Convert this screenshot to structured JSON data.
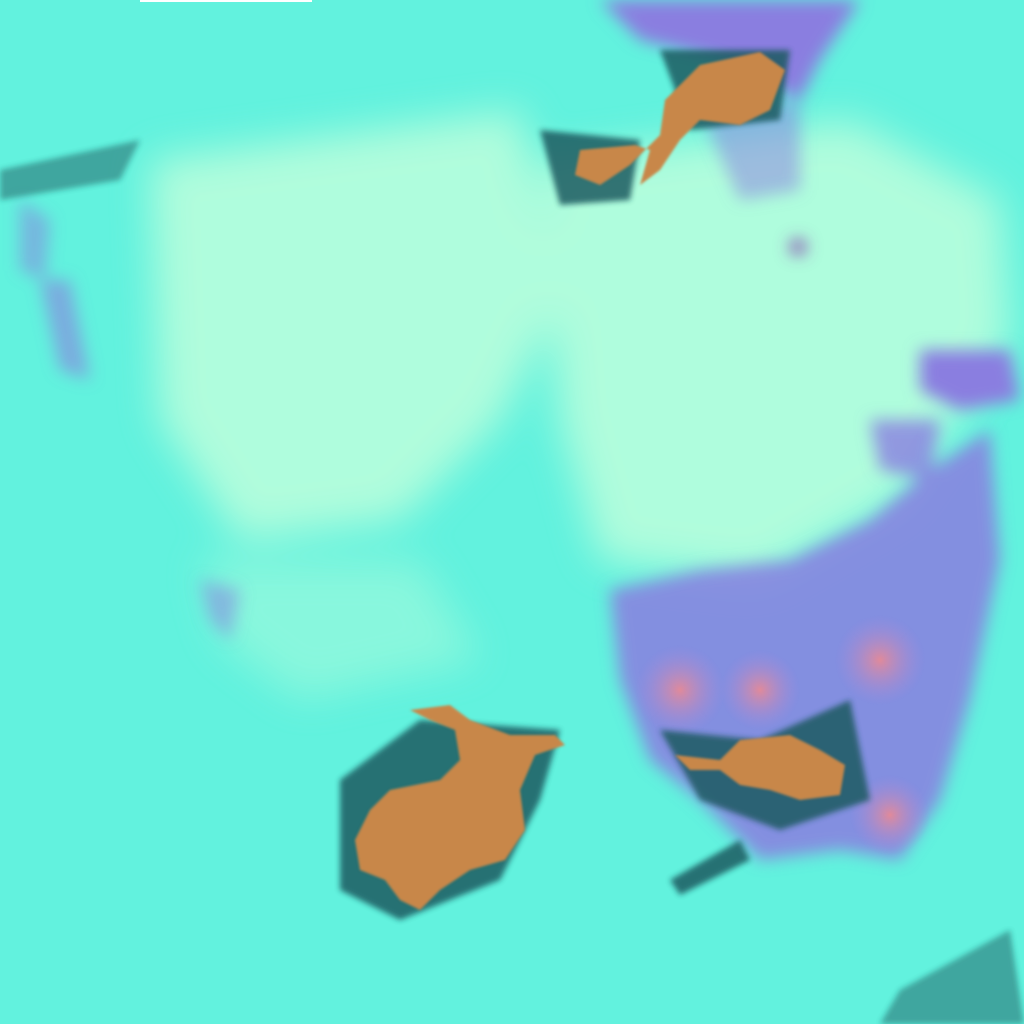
{
  "image": {
    "kind": "false-color satellite imagery",
    "colors": {
      "background": "#62f2de",
      "bright_cloud": "#c8ffd8",
      "high_cloud": "#8a7ee0",
      "warm_core": "#d08aa8",
      "land_brown": "#c8874a",
      "dark_fringe": "#1a4a5a"
    }
  }
}
